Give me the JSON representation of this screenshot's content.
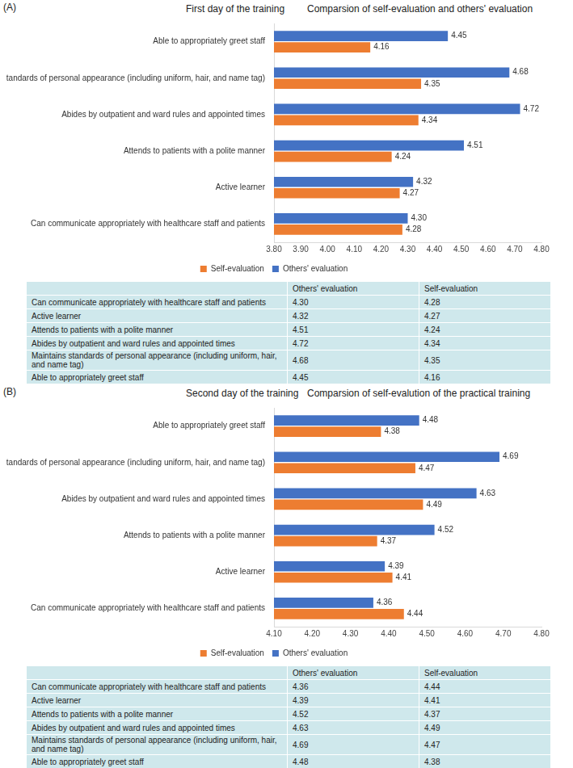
{
  "chart_data": [
    {
      "type": "bar",
      "orientation": "horizontal",
      "panel": "(A)",
      "title": "First day of the training",
      "subtitle": "Comparsion of self-evaluation and others' evaluation",
      "categories": [
        "Can communicate appropriately with healthcare staff and patients",
        "Active learner",
        "Attends to patients with a polite manner",
        "Abides by outpatient and ward rules and appointed times",
        "Maintains standards of personal appearance (including uniform, hair, and name tag)",
        "Able to appropriately greet staff"
      ],
      "series": [
        {
          "name": "Others' evaluation",
          "color": "#4472c4",
          "values": [
            4.3,
            4.32,
            4.51,
            4.72,
            4.68,
            4.45
          ],
          "value_labels": [
            "4.30",
            "4.32",
            "4.51",
            "4.72",
            "4.68",
            "4.45"
          ]
        },
        {
          "name": "Self-evaluation",
          "color": "#ed7d31",
          "values": [
            4.28,
            4.27,
            4.24,
            4.34,
            4.35,
            4.16
          ],
          "value_labels": [
            "4.28",
            "4.27",
            "4.24",
            "4.34",
            "4.35",
            "4.16"
          ]
        }
      ],
      "xlim": [
        3.8,
        4.8
      ],
      "xticks": [
        {
          "value": 3.8,
          "label": "3.80"
        },
        {
          "value": 3.9,
          "label": "3.90"
        },
        {
          "value": 4.0,
          "label": "4.00"
        },
        {
          "value": 4.1,
          "label": "4.10"
        },
        {
          "value": 4.2,
          "label": "4.20"
        },
        {
          "value": 4.3,
          "label": "4.30"
        },
        {
          "value": 4.4,
          "label": "4.40"
        },
        {
          "value": 4.5,
          "label": "4.50"
        },
        {
          "value": 4.6,
          "label": "4.60"
        },
        {
          "value": 4.7,
          "label": "4.70"
        },
        {
          "value": 4.8,
          "label": "4.80"
        }
      ],
      "grid": false,
      "legend": "bottom",
      "data_labels": true
    },
    {
      "type": "bar",
      "orientation": "horizontal",
      "panel": "(B)",
      "title": "Second day of the training",
      "subtitle": "Comparsion of self-evalution of the practical training",
      "categories": [
        "Can communicate appropriately with healthcare staff and patients",
        "Active learner",
        "Attends to patients with a polite manner",
        "Abides by outpatient and ward rules and appointed times",
        "Maintains standards of personal appearance (including uniform, hair, and name tag)",
        "Able to appropriately greet staff"
      ],
      "series": [
        {
          "name": "Others' evaluation",
          "color": "#4472c4",
          "values": [
            4.36,
            4.39,
            4.52,
            4.63,
            4.69,
            4.48
          ],
          "value_labels": [
            "4.36",
            "4.39",
            "4.52",
            "4.63",
            "4.69",
            "4.48"
          ]
        },
        {
          "name": "Self-evaluation",
          "color": "#ed7d31",
          "values": [
            4.44,
            4.41,
            4.37,
            4.49,
            4.47,
            4.38
          ],
          "value_labels": [
            "4.44",
            "4.41",
            "4.37",
            "4.49",
            "4.47",
            "4.38"
          ]
        }
      ],
      "xlim": [
        4.1,
        4.8
      ],
      "xticks": [
        {
          "value": 4.1,
          "label": "4.10"
        },
        {
          "value": 4.2,
          "label": "4.20"
        },
        {
          "value": 4.3,
          "label": "4.30"
        },
        {
          "value": 4.4,
          "label": "4.40"
        },
        {
          "value": 4.5,
          "label": "4.50"
        },
        {
          "value": 4.6,
          "label": "4.60"
        },
        {
          "value": 4.7,
          "label": "4.70"
        },
        {
          "value": 4.8,
          "label": "4.80"
        }
      ],
      "grid": false,
      "legend": "bottom",
      "data_labels": true
    }
  ]
}
